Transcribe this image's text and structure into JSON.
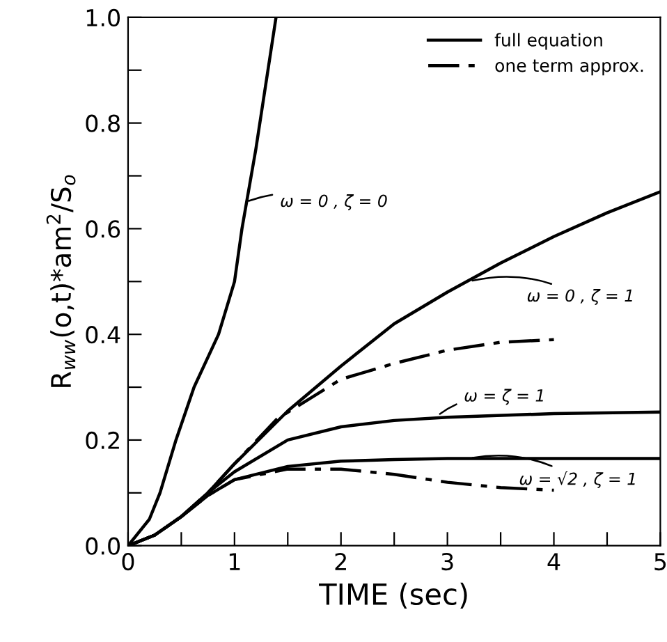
{
  "chart_data": {
    "type": "line",
    "xlabel": "TIME (sec)",
    "ylabel": "R$_{ww}$(o,t)*am$^{2}$/S$_{o}$",
    "xlim": [
      0,
      5
    ],
    "ylim": [
      0,
      1.0
    ],
    "xticks": [
      0,
      {
        "value": 0.5,
        "label": null
      },
      1,
      {
        "value": 1.5,
        "label": null
      },
      2,
      {
        "value": 2.5,
        "label": null
      },
      3,
      {
        "value": 3.5,
        "label": null
      },
      4,
      {
        "value": 4.5,
        "label": null
      },
      5
    ],
    "yticks": [
      {
        "value": 0,
        "label": "0.0"
      },
      {
        "value": 0.1,
        "label": null
      },
      {
        "value": 0.2,
        "label": "0.2"
      },
      {
        "value": 0.3,
        "label": null
      },
      {
        "value": 0.4,
        "label": "0.4"
      },
      {
        "value": 0.5,
        "label": null
      },
      {
        "value": 0.6,
        "label": "0.6"
      },
      {
        "value": 0.7,
        "label": null
      },
      {
        "value": 0.8,
        "label": "0.8"
      },
      {
        "value": 0.9,
        "label": null
      },
      {
        "value": 1.0,
        "label": "1.0"
      }
    ],
    "grid": false,
    "legend": "top right",
    "marker": "none",
    "series": [
      {
        "color": "#000000",
        "line_style": "solid",
        "x": [
          0,
          0.2,
          0.3,
          0.45,
          0.62,
          0.85,
          1.0,
          1.07,
          1.2,
          1.39
        ],
        "values": [
          0,
          0.05,
          0.1,
          0.2,
          0.3,
          0.4,
          0.5,
          0.6,
          0.75,
          1.0
        ]
      },
      {
        "name": "full equation",
        "color": "#000000",
        "line_style": "solid",
        "x": [
          0,
          0.25,
          0.5,
          0.75,
          1,
          1.5,
          2,
          2.5,
          3,
          3.5,
          4,
          4.5,
          5
        ],
        "values": [
          0,
          0.02,
          0.055,
          0.1,
          0.155,
          0.255,
          0.34,
          0.42,
          0.48,
          0.535,
          0.585,
          0.63,
          0.67
        ]
      },
      {
        "name": "one term approx.",
        "color": "#000000",
        "line_style": "dashdot",
        "x": [
          0,
          0.25,
          0.5,
          0.75,
          1,
          1.4,
          2,
          2.5,
          3,
          3.5,
          4
        ],
        "values": [
          0,
          0.02,
          0.055,
          0.1,
          0.155,
          0.24,
          0.315,
          0.345,
          0.37,
          0.385,
          0.39
        ]
      },
      {
        "color": "#000000",
        "line_style": "solid",
        "x": [
          0,
          0.25,
          0.5,
          0.75,
          1,
          1.5,
          2,
          2.5,
          3,
          4,
          5
        ],
        "values": [
          0,
          0.02,
          0.055,
          0.1,
          0.14,
          0.2,
          0.225,
          0.237,
          0.243,
          0.25,
          0.253
        ]
      },
      {
        "color": "#000000",
        "line_style": "solid",
        "x": [
          0,
          0.25,
          0.5,
          0.75,
          1,
          1.5,
          2,
          2.5,
          3,
          4,
          5
        ],
        "values": [
          0,
          0.02,
          0.055,
          0.095,
          0.125,
          0.15,
          0.16,
          0.163,
          0.165,
          0.165,
          0.165
        ]
      },
      {
        "color": "#000000",
        "line_style": "dashdot",
        "x": [
          0,
          0.25,
          0.5,
          0.75,
          1,
          1.5,
          2,
          2.5,
          3,
          3.5,
          4
        ],
        "values": [
          0,
          0.02,
          0.055,
          0.095,
          0.125,
          0.145,
          0.145,
          0.135,
          0.12,
          0.11,
          0.105
        ]
      }
    ],
    "annotations": [
      {
        "text": "ω = 0 , ζ = 0",
        "x": 1.1,
        "y": 0.65
      },
      {
        "text": "ω = 0 , ζ = 1",
        "x": 3.2,
        "y": 0.5
      },
      {
        "text": "ω = ζ = 1",
        "x": 2.9,
        "y": 0.245
      },
      {
        "text": "ω = √2 , ζ = 1",
        "x": 3.2,
        "y": 0.165
      }
    ]
  }
}
